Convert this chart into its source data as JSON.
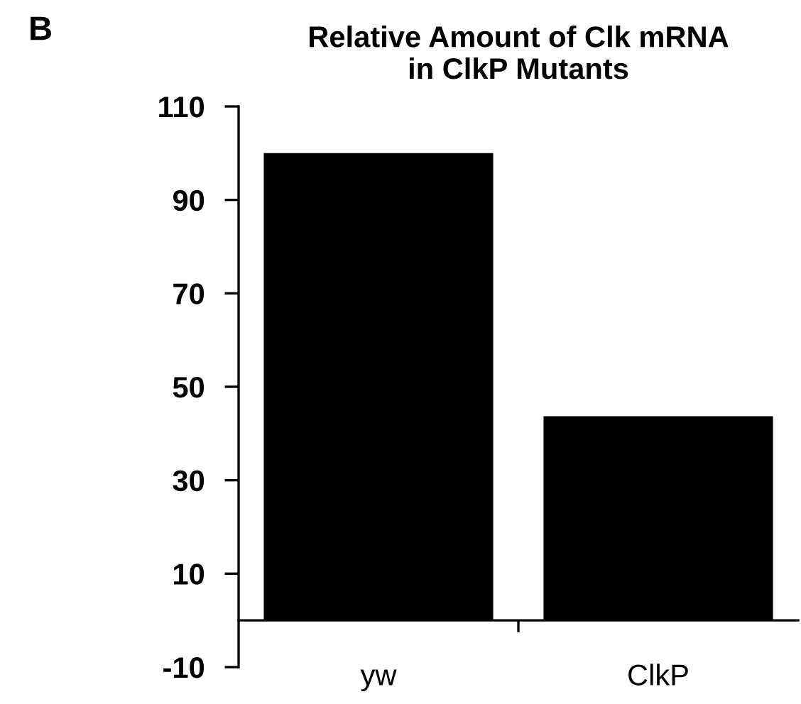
{
  "chart_data": {
    "type": "bar",
    "title": "Relative Amount of Clk mRNA\nin ClkP Mutants",
    "categories": [
      "yw",
      "ClkP"
    ],
    "values": [
      100,
      43.7
    ],
    "color": "#000000",
    "ylim": [
      -10,
      110
    ],
    "yticks": [
      -10,
      10,
      30,
      50,
      70,
      90,
      110
    ],
    "grid": false,
    "annotations": [
      "B"
    ]
  }
}
